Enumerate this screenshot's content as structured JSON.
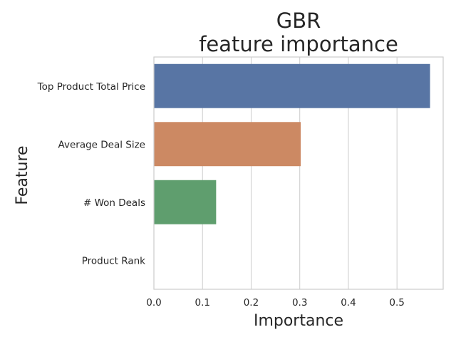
{
  "chart_data": {
    "type": "bar",
    "orientation": "horizontal",
    "title_lines": [
      "GBR",
      "feature importance"
    ],
    "xlabel": "Importance",
    "ylabel": "Feature",
    "categories": [
      "Top Product Total Price",
      "Average Deal Size",
      "# Won Deals",
      "Product Rank"
    ],
    "values": [
      0.568,
      0.302,
      0.128,
      0.0
    ],
    "colors": [
      "#5875a4",
      "#cc8963",
      "#5f9e6e",
      "#b55d60"
    ],
    "xlim": [
      0,
      0.595
    ],
    "xticks": [
      0.0,
      0.1,
      0.2,
      0.3,
      0.4,
      0.5
    ],
    "xtick_labels": [
      "0.0",
      "0.1",
      "0.2",
      "0.3",
      "0.4",
      "0.5"
    ],
    "grid": "vertical",
    "legend": "none"
  }
}
